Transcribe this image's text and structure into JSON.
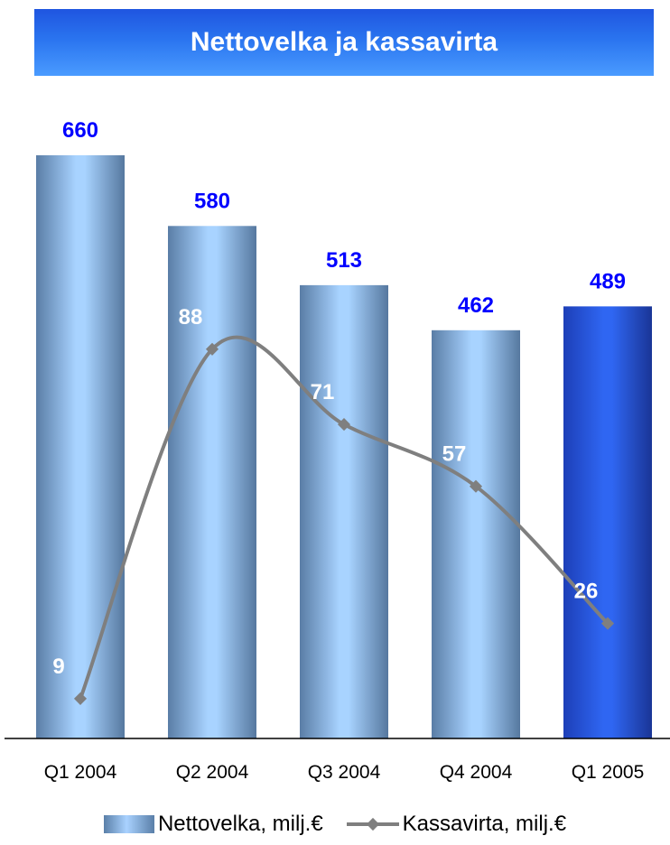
{
  "title": "Nettovelka ja kassavirta",
  "chart_data": {
    "type": "bar",
    "categories": [
      "Q1 2004",
      "Q2 2004",
      "Q3 2004",
      "Q4 2004",
      "Q1 2005"
    ],
    "series": [
      {
        "name": "Nettovelka, milj.€",
        "type": "bar",
        "values": [
          660,
          580,
          513,
          462,
          489
        ],
        "label_color": "#0000ff"
      },
      {
        "name": "Kassavirta, milj.€",
        "type": "line",
        "values": [
          9,
          88,
          71,
          57,
          26
        ],
        "color": "#7f7f7f",
        "label_color": "#ffffff"
      }
    ],
    "highlight_category": "Q1 2005",
    "colors": {
      "bar": "#9ac9f5",
      "bar_highlight": "#2e5fe8",
      "line": "#7f7f7f"
    },
    "legend": [
      "Nettovelka, milj.€",
      "Kassavirta, milj.€"
    ],
    "legend_position": "bottom",
    "grid": false
  }
}
